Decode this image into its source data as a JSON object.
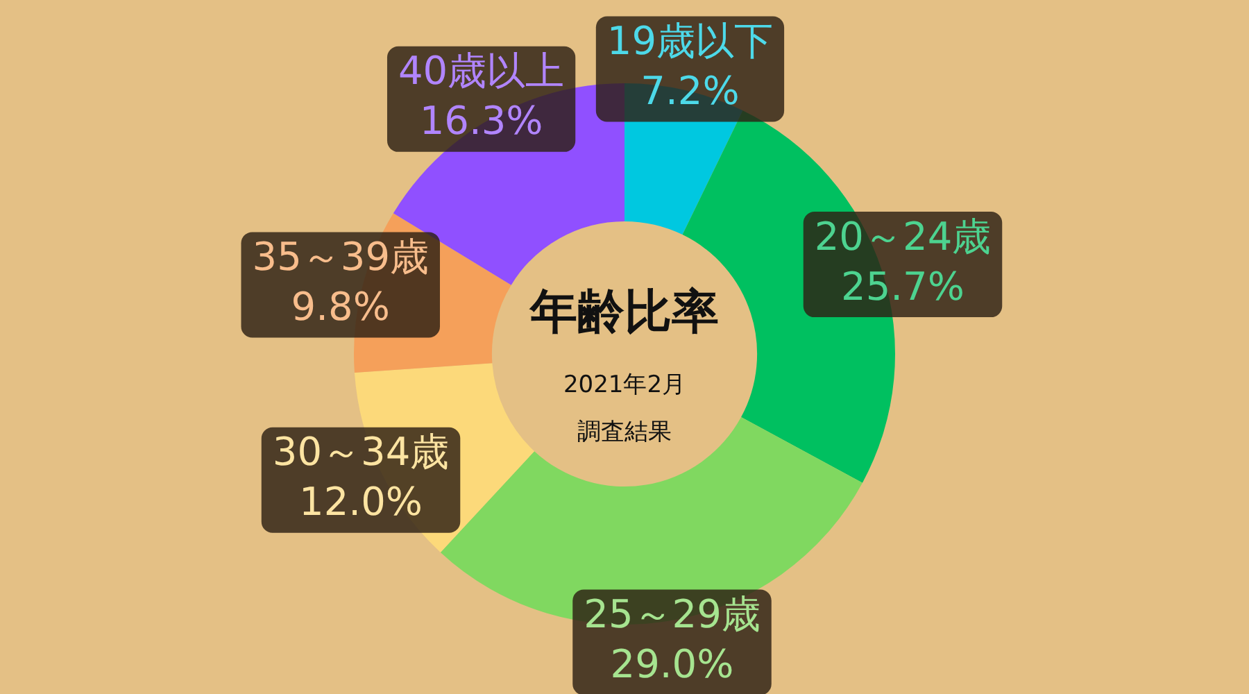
{
  "chart_data": {
    "type": "donut",
    "title": "年齢比率",
    "subtitle": "2021年2月",
    "annotations": [
      "調査結果"
    ],
    "categories": [
      "19歳以下",
      "20～24歳",
      "25～29歳",
      "30～34歳",
      "35～39歳",
      "40歳以上"
    ],
    "values": [
      7.2,
      25.7,
      29.0,
      12.0,
      9.8,
      16.3
    ],
    "value_labels": [
      "7.2%",
      "25.7%",
      "29.0%",
      "12.0%",
      "9.8%",
      "16.3%"
    ],
    "colors": [
      "#00c8e0",
      "#00c060",
      "#80d860",
      "#fcd97a",
      "#f5a05a",
      "#9050ff"
    ],
    "legend": false
  }
}
